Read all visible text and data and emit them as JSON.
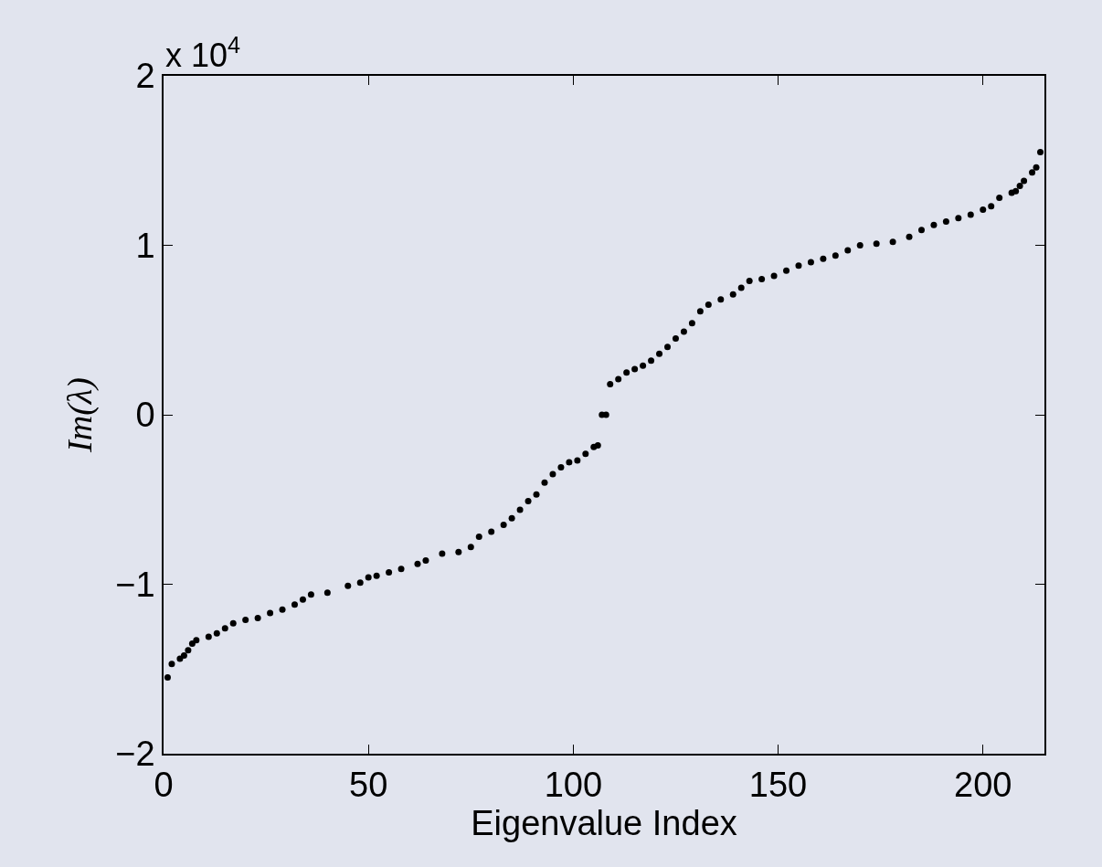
{
  "chart_data": {
    "type": "scatter",
    "xlabel": "Eigenvalue Index",
    "ylabel": "Im(λ)",
    "annotations": [
      "x 10$^{4}$"
    ],
    "x": [
      1,
      2,
      4,
      5,
      6,
      7,
      8,
      11,
      13,
      15,
      17,
      20,
      23,
      26,
      29,
      32,
      34,
      36,
      40,
      45,
      48,
      50,
      52,
      55,
      58,
      62,
      64,
      68,
      72,
      75,
      77,
      80,
      83,
      85,
      87,
      89,
      91,
      93,
      95,
      97,
      99,
      101,
      103,
      105,
      106,
      107,
      108,
      109,
      111,
      113,
      115,
      117,
      119,
      121,
      123,
      125,
      127,
      129,
      131,
      133,
      136,
      139,
      141,
      143,
      146,
      149,
      152,
      155,
      158,
      161,
      164,
      167,
      170,
      174,
      178,
      182,
      185,
      188,
      191,
      194,
      197,
      200,
      202,
      204,
      207,
      208,
      209,
      210,
      212,
      213,
      214
    ],
    "series": [
      {
        "color": "#000000",
        "values": [
          -1.55,
          -1.47,
          -1.44,
          -1.42,
          -1.39,
          -1.35,
          -1.33,
          -1.31,
          -1.29,
          -1.26,
          -1.23,
          -1.21,
          -1.2,
          -1.17,
          -1.15,
          -1.12,
          -1.09,
          -1.06,
          -1.05,
          -1.01,
          -0.99,
          -0.96,
          -0.95,
          -0.93,
          -0.91,
          -0.88,
          -0.86,
          -0.82,
          -0.81,
          -0.78,
          -0.72,
          -0.69,
          -0.65,
          -0.61,
          -0.56,
          -0.51,
          -0.47,
          -0.4,
          -0.35,
          -0.31,
          -0.28,
          -0.27,
          -0.23,
          -0.19,
          -0.18,
          0.0,
          0.0,
          0.18,
          0.21,
          0.25,
          0.27,
          0.29,
          0.32,
          0.36,
          0.4,
          0.45,
          0.49,
          0.54,
          0.61,
          0.65,
          0.68,
          0.71,
          0.75,
          0.79,
          0.8,
          0.82,
          0.85,
          0.88,
          0.9,
          0.92,
          0.94,
          0.97,
          1.0,
          1.01,
          1.02,
          1.05,
          1.09,
          1.12,
          1.14,
          1.16,
          1.18,
          1.21,
          1.23,
          1.28,
          1.31,
          1.32,
          1.35,
          1.38,
          1.43,
          1.46,
          1.55
        ]
      }
    ],
    "xlim": [
      0,
      215
    ],
    "xticks": [
      0,
      50,
      100,
      150,
      200
    ],
    "ylim": [
      -2,
      2
    ],
    "yticks": [
      {
        "value": -2,
        "label": "−2"
      },
      {
        "value": -1,
        "label": "−1"
      },
      0,
      1,
      2
    ],
    "marker": "circle"
  }
}
